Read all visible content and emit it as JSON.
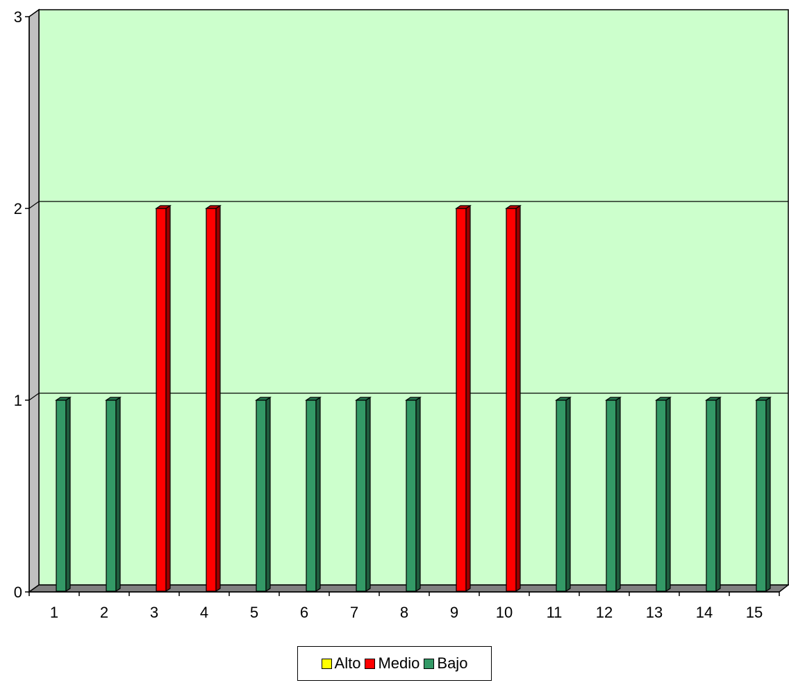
{
  "chart_data": {
    "type": "bar",
    "categories": [
      "1",
      "2",
      "3",
      "4",
      "5",
      "6",
      "7",
      "8",
      "9",
      "10",
      "11",
      "12",
      "13",
      "14",
      "15"
    ],
    "series": [
      {
        "name": "Alto",
        "color": "#ffff00",
        "values": [
          0,
          0,
          0,
          0,
          0,
          0,
          0,
          0,
          0,
          0,
          0,
          0,
          0,
          0,
          0
        ]
      },
      {
        "name": "Medio",
        "color": "#ff0000",
        "values": [
          0,
          0,
          2,
          2,
          0,
          0,
          0,
          0,
          2,
          2,
          0,
          0,
          0,
          0,
          0
        ]
      },
      {
        "name": "Bajo",
        "color": "#339966",
        "values": [
          1,
          1,
          0,
          0,
          1,
          1,
          1,
          1,
          0,
          0,
          1,
          1,
          1,
          1,
          1
        ]
      }
    ],
    "y_ticks": [
      "0",
      "1",
      "2",
      "3"
    ],
    "ylim": [
      0,
      3
    ],
    "grid": true,
    "style": "3d-column",
    "plot_background": "#ccffcc",
    "legend_position": "bottom"
  }
}
